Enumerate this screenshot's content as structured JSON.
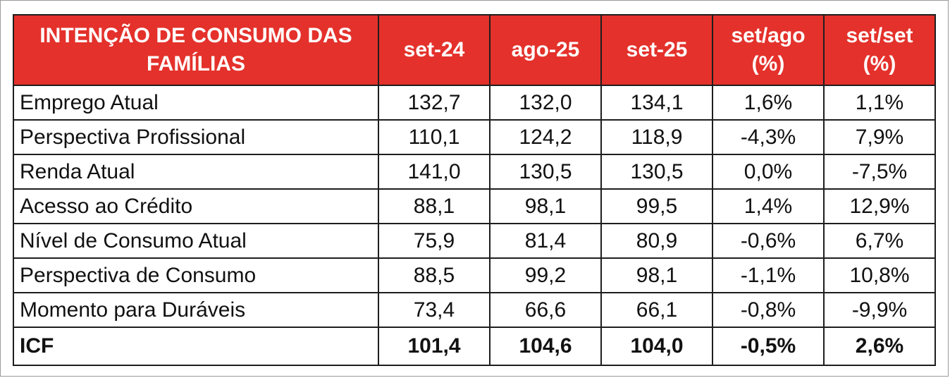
{
  "table": {
    "title": "INTENÇÃO DE CONSUMO DAS FAMÍLIAS",
    "columns": [
      "set-24",
      "ago-25",
      "set-25",
      "set/ago (%)",
      "set/set (%)"
    ],
    "rows": [
      {
        "label": "Emprego Atual",
        "values": [
          "132,7",
          "132,0",
          "134,1",
          "1,6%",
          "1,1%"
        ]
      },
      {
        "label": "Perspectiva Profissional",
        "values": [
          "110,1",
          "124,2",
          "118,9",
          "-4,3%",
          "7,9%"
        ]
      },
      {
        "label": "Renda Atual",
        "values": [
          "141,0",
          "130,5",
          "130,5",
          "0,0%",
          "-7,5%"
        ]
      },
      {
        "label": "Acesso ao Crédito",
        "values": [
          "88,1",
          "98,1",
          "99,5",
          "1,4%",
          "12,9%"
        ]
      },
      {
        "label": "Nível de Consumo Atual",
        "values": [
          "75,9",
          "81,4",
          "80,9",
          "-0,6%",
          "6,7%"
        ]
      },
      {
        "label": "Perspectiva de Consumo",
        "values": [
          "88,5",
          "99,2",
          "98,1",
          "-1,1%",
          "10,8%"
        ]
      },
      {
        "label": "Momento para Duráveis",
        "values": [
          "73,4",
          "66,6",
          "66,1",
          "-0,8%",
          "-9,9%"
        ]
      }
    ],
    "total": {
      "label": "ICF",
      "values": [
        "101,4",
        "104,6",
        "104,0",
        "-0,5%",
        "2,6%"
      ]
    }
  },
  "colors": {
    "header_bg": "#e4312b",
    "header_text": "#ffffff",
    "border": "#1e1e1e"
  },
  "chart_data": {
    "type": "table",
    "title": "INTENÇÃO DE CONSUMO DAS FAMÍLIAS",
    "columns": [
      "set-24",
      "ago-25",
      "set-25",
      "set/ago (%)",
      "set/set (%)"
    ],
    "rows": [
      [
        "Emprego Atual",
        132.7,
        132.0,
        134.1,
        1.6,
        1.1
      ],
      [
        "Perspectiva Profissional",
        110.1,
        124.2,
        118.9,
        -4.3,
        7.9
      ],
      [
        "Renda Atual",
        141.0,
        130.5,
        130.5,
        0.0,
        -7.5
      ],
      [
        "Acesso ao Crédito",
        88.1,
        98.1,
        99.5,
        1.4,
        12.9
      ],
      [
        "Nível de Consumo Atual",
        75.9,
        81.4,
        80.9,
        -0.6,
        6.7
      ],
      [
        "Perspectiva de Consumo",
        88.5,
        99.2,
        98.1,
        -1.1,
        10.8
      ],
      [
        "Momento para Duráveis",
        73.4,
        66.6,
        66.1,
        -0.8,
        -9.9
      ],
      [
        "ICF",
        101.4,
        104.6,
        104.0,
        -0.5,
        2.6
      ]
    ]
  }
}
